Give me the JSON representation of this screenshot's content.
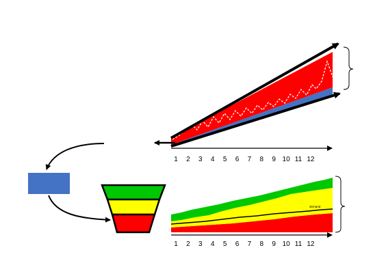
{
  "colors": {
    "red": "#ff0000",
    "blue": "#4472c4",
    "green": "#00c800",
    "yellow": "#ffff00",
    "black": "#000000",
    "dashed_line": "#ffffff"
  },
  "top_chart": {
    "x_ticks": [
      "1",
      "2",
      "3",
      "4",
      "5",
      "6",
      "7",
      "8",
      "9",
      "10",
      "11",
      "12"
    ]
  },
  "bottom_chart": {
    "x_ticks": [
      "1",
      "2",
      "3",
      "4",
      "5",
      "6",
      "7",
      "8",
      "9",
      "10",
      "11",
      "12"
    ],
    "inline_label": "demand"
  },
  "funnel": {
    "levels": [
      "green",
      "yellow",
      "red"
    ]
  }
}
